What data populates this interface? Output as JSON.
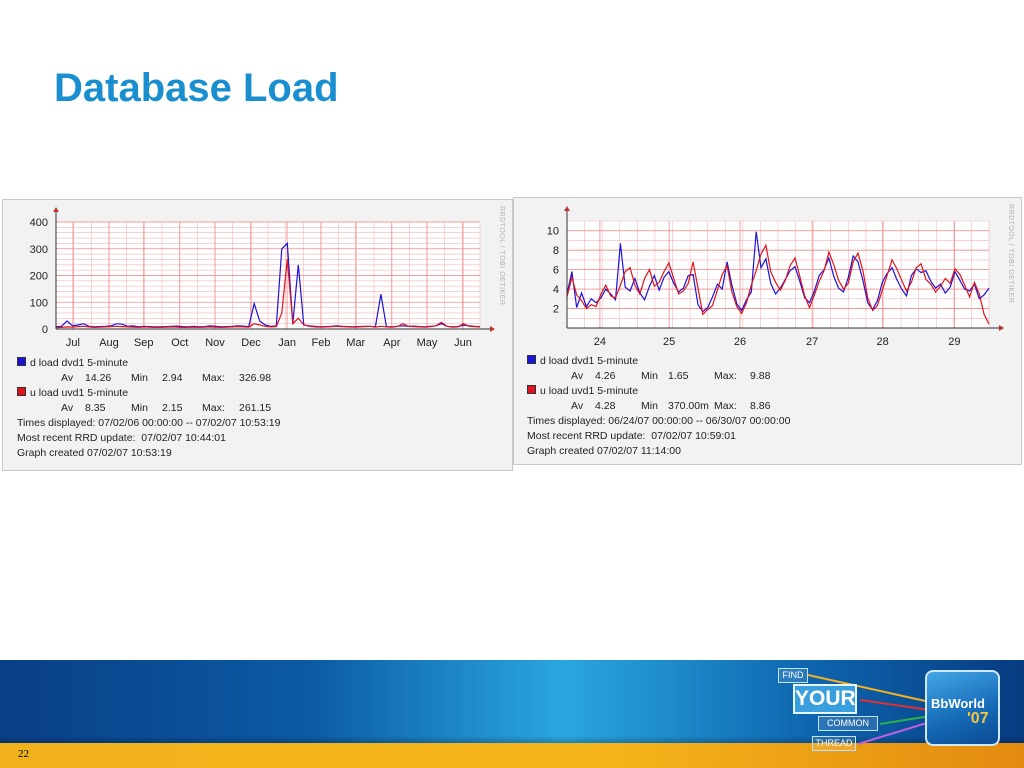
{
  "slide": {
    "title": "Database Load",
    "page_number": "22"
  },
  "colors": {
    "title": "#1a8fd0",
    "series_d": "#1a14d6",
    "series_u": "#e0141c",
    "grid": "#f0a0a0"
  },
  "rrd_tag": "RRDTOOL / TOBI OETIKER",
  "chart_data": [
    {
      "type": "line",
      "ylim": [
        0,
        400
      ],
      "yticks": [
        "400",
        "300",
        "200",
        "100",
        "0"
      ],
      "xticks": [
        "Jul",
        "Aug",
        "Sep",
        "Oct",
        "Nov",
        "Dec",
        "Jan",
        "Feb",
        "Mar",
        "Apr",
        "May",
        "Jun"
      ],
      "series": [
        {
          "name": "d load dvd1 5-minute",
          "values": [
            8,
            10,
            30,
            12,
            15,
            20,
            10,
            8,
            9,
            10,
            12,
            20,
            18,
            10,
            12,
            8,
            10,
            9,
            8,
            8,
            9,
            10,
            11,
            9,
            8,
            10,
            8,
            9,
            12,
            10,
            8,
            9,
            10,
            12,
            11,
            9,
            95,
            30,
            15,
            10,
            12,
            300,
            320,
            20,
            240,
            15,
            12,
            10,
            8,
            9,
            10,
            12,
            10,
            9,
            8,
            9,
            10,
            10,
            8,
            130,
            9,
            8,
            10,
            12,
            10,
            11,
            9,
            8,
            10,
            12,
            20,
            10,
            8,
            9,
            15,
            12,
            10,
            9
          ]
        },
        {
          "name": "u load uvd1 5-minute",
          "values": [
            5,
            6,
            8,
            7,
            9,
            10,
            8,
            6,
            7,
            8,
            9,
            10,
            9,
            8,
            7,
            6,
            8,
            7,
            6,
            6,
            7,
            8,
            7,
            6,
            6,
            7,
            6,
            7,
            8,
            7,
            6,
            7,
            8,
            9,
            8,
            7,
            20,
            15,
            10,
            8,
            9,
            60,
            261,
            20,
            40,
            15,
            10,
            8,
            7,
            8,
            9,
            10,
            9,
            8,
            7,
            8,
            9,
            10,
            7,
            10,
            8,
            7,
            9,
            20,
            10,
            9,
            8,
            7,
            9,
            12,
            25,
            10,
            7,
            8,
            20,
            10,
            9,
            8
          ]
        }
      ]
    },
    {
      "type": "line",
      "ylim": [
        0,
        11
      ],
      "yticks": [
        "10",
        "8",
        "6",
        "4",
        "2"
      ],
      "xticks": [
        "24",
        "25",
        "26",
        "27",
        "28",
        "29"
      ],
      "series": [
        {
          "name": "d load dvd1 5-minute",
          "values": [
            3.5,
            5.8,
            2.1,
            3.6,
            2.2,
            3.0,
            2.6,
            3.1,
            4.0,
            3.5,
            2.9,
            8.7,
            4.2,
            3.8,
            5.1,
            3.6,
            2.9,
            4.3,
            5.4,
            3.9,
            5.2,
            5.8,
            4.6,
            3.7,
            4.1,
            5.4,
            5.5,
            2.4,
            1.7,
            2.1,
            3.2,
            4.5,
            4.0,
            6.8,
            4.4,
            2.5,
            1.8,
            2.9,
            3.7,
            9.9,
            6.2,
            7.1,
            4.6,
            3.5,
            4.1,
            5.0,
            5.9,
            6.3,
            4.8,
            3.1,
            2.6,
            3.8,
            5.4,
            6.0,
            7.2,
            5.3,
            4.1,
            3.7,
            5.2,
            7.4,
            6.8,
            4.9,
            2.6,
            1.9,
            2.8,
            4.7,
            5.6,
            6.2,
            5.0,
            4.0,
            3.3,
            5.4,
            6.1,
            5.7,
            5.9,
            4.8,
            4.1,
            4.5,
            3.6,
            4.2,
            5.8,
            4.9,
            4.0,
            3.8,
            4.5,
            3.0,
            3.4,
            4.1
          ]
        },
        {
          "name": "u load uvd1 5-minute",
          "values": [
            3.2,
            5.2,
            3.4,
            2.8,
            2.0,
            2.4,
            2.2,
            3.5,
            4.4,
            3.3,
            3.1,
            4.4,
            5.8,
            6.2,
            4.4,
            3.5,
            5.1,
            6.0,
            4.3,
            4.7,
            5.8,
            6.7,
            5.1,
            3.5,
            3.8,
            4.6,
            6.8,
            4.1,
            1.4,
            1.9,
            2.3,
            3.9,
            5.5,
            6.4,
            3.7,
            2.2,
            1.5,
            2.6,
            4.4,
            5.9,
            7.6,
            8.5,
            5.8,
            4.7,
            3.9,
            4.9,
            6.4,
            7.2,
            5.3,
            3.3,
            2.1,
            3.4,
            4.8,
            5.9,
            7.8,
            6.5,
            4.9,
            4.0,
            4.6,
            6.8,
            7.7,
            5.9,
            3.1,
            1.8,
            2.3,
            3.9,
            5.4,
            7.0,
            6.1,
            4.9,
            3.8,
            4.7,
            6.2,
            6.6,
            5.0,
            4.5,
            3.7,
            4.3,
            5.1,
            4.6,
            6.1,
            5.5,
            4.4,
            3.2,
            4.7,
            3.5,
            1.4,
            0.4
          ]
        }
      ]
    }
  ],
  "legends": [
    {
      "d": {
        "label": "d load dvd1 5-minute",
        "av_label": "Av",
        "av": "14.26",
        "min_label": "Min",
        "min": "2.94",
        "max_label": "Max:",
        "max": "326.98"
      },
      "u": {
        "label": "u load uvd1 5-minute",
        "av_label": "Av",
        "av": "8.35",
        "min_label": "Min",
        "min": "2.15",
        "max_label": "Max:",
        "max": "261.15"
      },
      "times": "Times displayed: 07/02/06 00:00:00 -- 07/02/07 10:53:19",
      "recent": "Most recent RRD update:  07/02/07 10:44:01",
      "created": "Graph created 07/02/07 10:53:19"
    },
    {
      "d": {
        "label": "d load dvd1 5-minute",
        "av_label": "Av",
        "av": "4.26",
        "min_label": "Min",
        "min": "1.65",
        "max_label": "Max:",
        "max": "9.88"
      },
      "u": {
        "label": "u load uvd1 5-minute",
        "av_label": "Av",
        "av": "4.28",
        "min_label": "Min",
        "min": "370.00m",
        "max_label": "Max:",
        "max": "8.86"
      },
      "times": "Times displayed: 06/24/07 00:00:00 -- 06/30/07 00:00:00",
      "recent": "Most recent RRD update:  07/02/07 10:59:01",
      "created": "Graph created 07/02/07 11:14:00"
    }
  ],
  "logo": {
    "find": "FIND",
    "your": "YOUR",
    "common": "COMMON",
    "thread": "THREAD",
    "brand": "BbWorld",
    "year": "'07"
  }
}
